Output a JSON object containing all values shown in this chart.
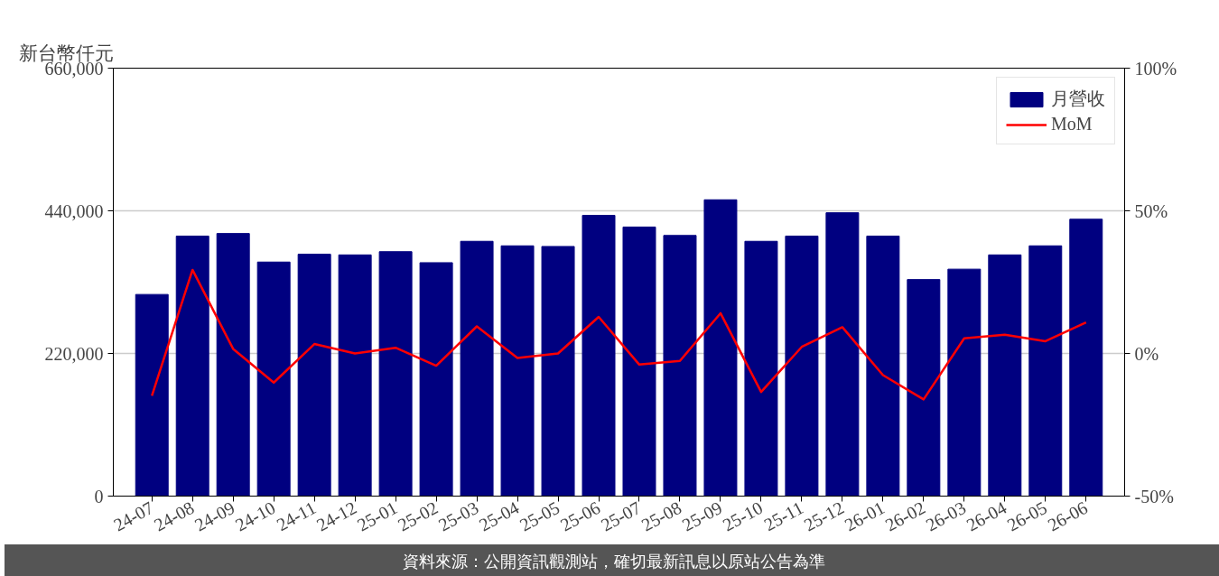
{
  "chart_data": {
    "type": "bar",
    "ylabel": "新台幣仟元",
    "categories": [
      "24-07",
      "24-08",
      "24-09",
      "24-10",
      "24-11",
      "24-12",
      "25-01",
      "25-02",
      "25-03",
      "25-04",
      "25-05",
      "25-06",
      "25-07",
      "25-08",
      "25-09",
      "25-10",
      "25-11",
      "25-12",
      "26-01",
      "26-02",
      "26-03",
      "26-04",
      "26-05",
      "26-06"
    ],
    "series": [
      {
        "name": "月營收",
        "color": "#000080",
        "values": [
          311000,
          401000,
          405000,
          361000,
          373000,
          372000,
          377000,
          360000,
          393000,
          386000,
          385000,
          433000,
          415000,
          402000,
          457000,
          393000,
          401000,
          437000,
          401000,
          334000,
          350000,
          372000,
          386000,
          427000
        ]
      },
      {
        "name": "MoM",
        "type": "line",
        "axis": "y2",
        "color": "#ff0000",
        "values": [
          -14.8,
          29.3,
          1.6,
          -10.2,
          3.3,
          0,
          2,
          -4.3,
          9.5,
          -1.6,
          0,
          12.8,
          -3.9,
          -2.6,
          14.1,
          -13.5,
          2.3,
          9.2,
          -7.6,
          -16.1,
          5.3,
          6.6,
          4.3,
          10.9
        ]
      }
    ],
    "ylim": [
      0,
      660000
    ],
    "yticks": [
      {
        "value": 0,
        "label": "0"
      },
      {
        "value": 220000,
        "label": "220,000"
      },
      {
        "value": 440000,
        "label": "440,000"
      },
      {
        "value": 660000,
        "label": "660,000"
      }
    ],
    "y2lim": [
      -50,
      100
    ],
    "y2ticks": [
      {
        "value": -50,
        "label": "-50%"
      },
      {
        "value": 0,
        "label": "0%"
      },
      {
        "value": 50,
        "label": "50%"
      },
      {
        "value": 100,
        "label": "100%"
      }
    ],
    "grid": "y",
    "legend": "top right",
    "annotations": [
      "資料來源：公開資訊觀測站，確切最新訊息以原站公告為準"
    ]
  }
}
